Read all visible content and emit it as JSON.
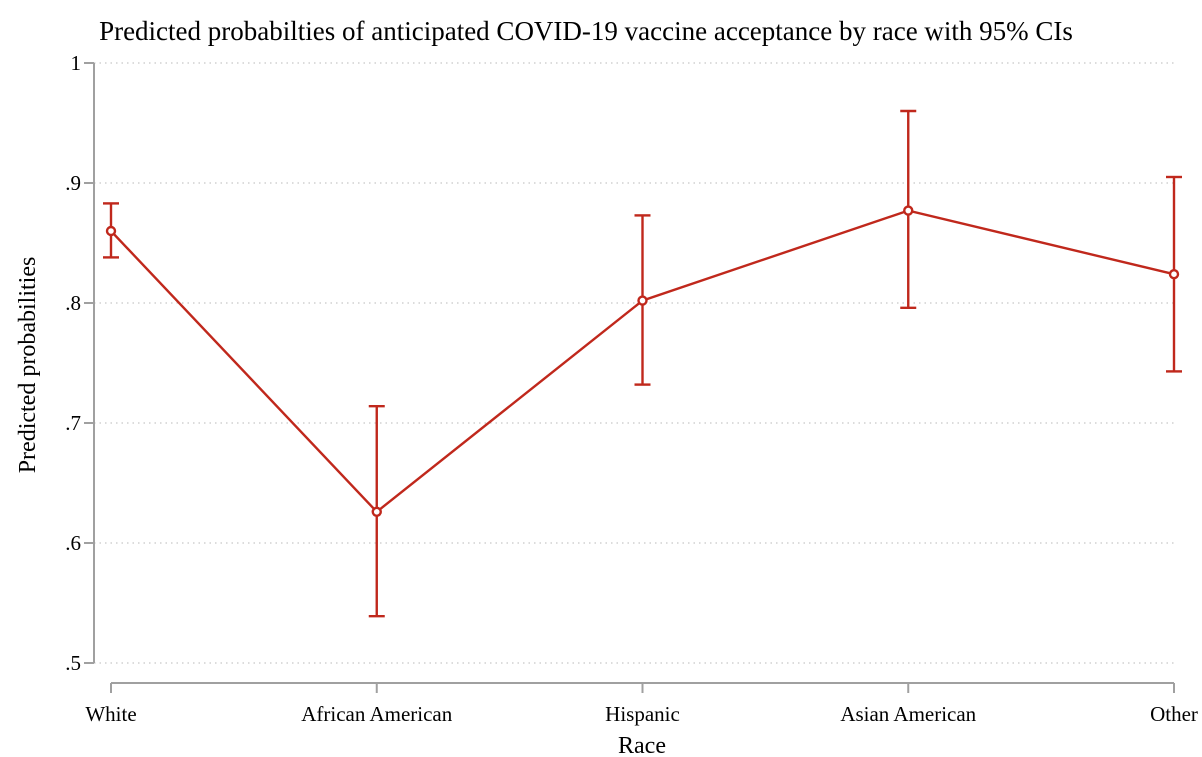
{
  "chart_data": {
    "type": "line",
    "title": "Predicted probabilties of anticipated COVID-19 vaccine acceptance by race with 95% CIs",
    "xlabel": "Race",
    "ylabel": "Predicted probabilities",
    "categories": [
      "White",
      "African American",
      "Hispanic",
      "Asian American",
      "Other"
    ],
    "ylim": [
      0.5,
      1.0
    ],
    "yticks": [
      0.5,
      0.6,
      0.7,
      0.8,
      0.9,
      1.0
    ],
    "ytick_labels": [
      ".5",
      ".6",
      ".7",
      ".8",
      ".9",
      "1"
    ],
    "grid": true,
    "series": [
      {
        "values": [
          0.86,
          0.626,
          0.802,
          0.877,
          0.824
        ],
        "ci_lower": [
          0.838,
          0.539,
          0.732,
          0.796,
          0.743
        ],
        "ci_upper": [
          0.883,
          0.714,
          0.873,
          0.96,
          0.905
        ],
        "color": "#c0281c"
      }
    ]
  }
}
